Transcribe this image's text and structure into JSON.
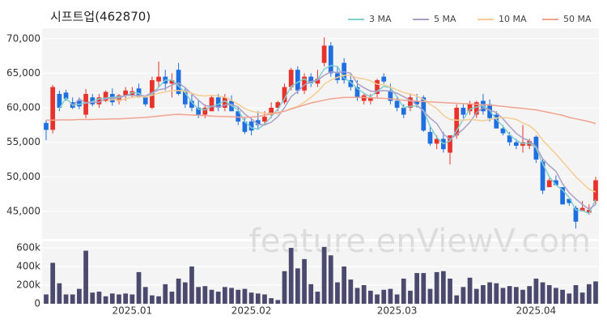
{
  "chart_data": [
    {
      "type": "candlestick",
      "title": "시프트업(462870)",
      "up_color": "#e8322b",
      "down_color": "#1f6fe0",
      "open": [
        57800,
        56800,
        62000,
        62200,
        60800,
        61000,
        59000,
        61500,
        60500,
        61000,
        62000,
        61000,
        61800,
        61800,
        62800,
        61500,
        60000,
        63800,
        64500,
        63500,
        65500,
        62500,
        61000,
        60000,
        59000,
        59500,
        61500,
        60000,
        61000,
        59500,
        58000,
        58000,
        58200,
        58000,
        59000,
        60000,
        60800,
        63000,
        65500,
        62500,
        64500,
        63500,
        66500,
        69000,
        65000,
        66500,
        64000,
        63000,
        61000,
        61000,
        62000,
        64500,
        62500,
        61000,
        60000,
        60000,
        61000,
        61500,
        56500,
        54800,
        55500,
        53500,
        56000,
        60000,
        59500,
        59000,
        61000,
        60500,
        59000,
        57000,
        56000,
        55000,
        54500,
        54500,
        55800,
        52200,
        48500,
        49500,
        48500,
        46800,
        45500,
        45000,
        44800,
        46500
      ],
      "high": [
        58200,
        63300,
        62500,
        62600,
        61500,
        61500,
        62700,
        62000,
        62000,
        62500,
        62800,
        62000,
        63000,
        63000,
        63500,
        61800,
        64500,
        66700,
        65500,
        65000,
        66500,
        63000,
        62200,
        61000,
        60500,
        61800,
        62000,
        62000,
        61800,
        60200,
        58500,
        58500,
        59500,
        59500,
        60800,
        61000,
        63500,
        65800,
        66000,
        65000,
        65000,
        65500,
        70200,
        69500,
        66000,
        67200,
        65000,
        64000,
        62000,
        62000,
        64200,
        65000,
        63500,
        61500,
        60500,
        62000,
        62000,
        61800,
        57500,
        56000,
        56500,
        56000,
        60500,
        60500,
        61000,
        61000,
        62000,
        61200,
        59500,
        57500,
        56500,
        55500,
        57500,
        55500,
        56000,
        52500,
        49800,
        50200,
        48500,
        46800,
        45800,
        46500,
        46000,
        50000
      ],
      "low": [
        55300,
        56300,
        59500,
        61000,
        59800,
        59800,
        58500,
        60200,
        60000,
        60800,
        60300,
        60500,
        61000,
        61500,
        61500,
        60200,
        59800,
        63000,
        62500,
        61500,
        61800,
        60000,
        59500,
        58500,
        58500,
        59500,
        59500,
        59500,
        59500,
        57500,
        56200,
        56000,
        56800,
        57500,
        58500,
        59500,
        60500,
        62500,
        62000,
        62000,
        63000,
        63000,
        66000,
        64500,
        63500,
        63500,
        62500,
        61000,
        60500,
        60500,
        61500,
        63500,
        60500,
        59500,
        58500,
        59500,
        60000,
        56500,
        54500,
        54000,
        53500,
        51800,
        55500,
        58500,
        59000,
        58500,
        59000,
        58000,
        57000,
        56000,
        54500,
        54000,
        53500,
        54000,
        52000,
        47500,
        48500,
        48700,
        46000,
        45800,
        42500,
        45000,
        44500,
        46000
      ],
      "close": [
        56800,
        63000,
        60000,
        61300,
        60000,
        60200,
        62000,
        60500,
        61500,
        62300,
        60800,
        61800,
        62500,
        62400,
        61500,
        60500,
        64000,
        64500,
        63500,
        64000,
        62000,
        60500,
        60000,
        59000,
        60000,
        61500,
        60000,
        61500,
        59500,
        58000,
        56500,
        56700,
        57500,
        58700,
        60000,
        60800,
        63000,
        65500,
        62500,
        64500,
        63500,
        64200,
        69000,
        65000,
        64000,
        64000,
        63000,
        61500,
        61800,
        61500,
        64000,
        63800,
        61000,
        60000,
        59000,
        61500,
        60500,
        56700,
        54800,
        55500,
        54000,
        56000,
        60000,
        59000,
        60500,
        60800,
        59500,
        58500,
        57000,
        56300,
        55000,
        54500,
        55000,
        55200,
        52500,
        48000,
        49500,
        48800,
        46000,
        46200,
        43500,
        45500,
        45200,
        49500
      ],
      "series": [
        {
          "name": "3 MA",
          "color": "#7fcfcf",
          "values": [
            null,
            null,
            59900,
            61400,
            60400,
            60500,
            60700,
            60900,
            61300,
            61400,
            61500,
            61600,
            61700,
            62200,
            62100,
            61500,
            62000,
            63000,
            64000,
            64000,
            63200,
            62200,
            60800,
            59800,
            59700,
            60200,
            60500,
            61000,
            60300,
            59700,
            58000,
            57100,
            56900,
            57600,
            58700,
            59800,
            61300,
            63100,
            63700,
            64200,
            63500,
            64100,
            65600,
            66100,
            66000,
            64300,
            63700,
            62800,
            62100,
            61600,
            62400,
            63100,
            62900,
            61600,
            60000,
            60200,
            60300,
            59600,
            57300,
            55700,
            54800,
            55200,
            56700,
            58300,
            59800,
            60100,
            60300,
            59600,
            58300,
            57300,
            56100,
            55300,
            54800,
            54900,
            54200,
            51900,
            50000,
            48800,
            48100,
            47000,
            45200,
            45100,
            44700,
            46700
          ]
        },
        {
          "name": "5 MA",
          "color": "#ab9fc8",
          "values": [
            null,
            null,
            null,
            null,
            60200,
            61300,
            60700,
            60800,
            60800,
            61300,
            61400,
            61400,
            61800,
            61800,
            61800,
            61700,
            62200,
            62600,
            62800,
            63300,
            63600,
            62900,
            62000,
            61100,
            60300,
            60200,
            60100,
            60400,
            60500,
            60100,
            59100,
            58400,
            57600,
            57500,
            57900,
            58700,
            60000,
            61600,
            62400,
            63300,
            63800,
            64000,
            64700,
            65200,
            65100,
            65200,
            65000,
            63500,
            62900,
            62400,
            62400,
            62500,
            62400,
            62100,
            61600,
            61100,
            60400,
            59500,
            58500,
            57700,
            56200,
            55400,
            56100,
            56900,
            57900,
            59300,
            60000,
            59700,
            59300,
            58400,
            57300,
            56300,
            55600,
            55200,
            54400,
            52600,
            51600,
            50800,
            49000,
            47700,
            46800,
            46000,
            45300,
            46000
          ]
        },
        {
          "name": "10 MA",
          "color": "#f5cc92",
          "values": [
            null,
            null,
            null,
            null,
            null,
            null,
            null,
            null,
            null,
            60900,
            61200,
            61100,
            61300,
            61500,
            61600,
            61600,
            61800,
            62100,
            62300,
            62500,
            62500,
            62400,
            62100,
            61800,
            61700,
            61800,
            61700,
            61500,
            61100,
            60500,
            59900,
            59500,
            59300,
            59200,
            59200,
            59200,
            59500,
            59900,
            60200,
            60800,
            61500,
            62300,
            63400,
            64000,
            64400,
            64700,
            64700,
            64300,
            64200,
            63900,
            63400,
            63300,
            63000,
            62600,
            62200,
            62000,
            61700,
            61200,
            60500,
            59900,
            58900,
            58300,
            58200,
            58200,
            58300,
            58200,
            58100,
            58300,
            58500,
            58600,
            58500,
            58300,
            57800,
            57400,
            56600,
            55300,
            54300,
            53300,
            52200,
            51100,
            50000,
            49100,
            48200,
            47800
          ]
        },
        {
          "name": "50 MA",
          "color": "#f2a28f",
          "values": [
            58200,
            58200,
            58250,
            58250,
            58250,
            58300,
            58300,
            58300,
            58350,
            58350,
            58400,
            58400,
            58450,
            58500,
            58550,
            58600,
            58700,
            58800,
            58900,
            59000,
            59050,
            59000,
            58950,
            58900,
            58850,
            58800,
            58750,
            58750,
            58700,
            58650,
            58600,
            58650,
            58750,
            58900,
            59100,
            59300,
            59500,
            59800,
            60100,
            60400,
            60700,
            60900,
            61100,
            61300,
            61400,
            61500,
            61500,
            61500,
            61500,
            61450,
            61400,
            61350,
            61300,
            61200,
            61100,
            61000,
            60950,
            60900,
            60850,
            60800,
            60750,
            60700,
            60650,
            60600,
            60550,
            60500,
            60450,
            60400,
            60300,
            60200,
            60100,
            60000,
            59900,
            59800,
            59700,
            59500,
            59300,
            59100,
            58900,
            58600,
            58400,
            58200,
            58000,
            57700
          ]
        }
      ],
      "ylim": [
        41000,
        71500
      ],
      "yticks": [
        {
          "value": 45000,
          "label": "45,000"
        },
        {
          "value": 50000,
          "label": "50,000"
        },
        {
          "value": 55000,
          "label": "55,000"
        },
        {
          "value": 60000,
          "label": "60,000"
        },
        {
          "value": 65000,
          "label": "65,000"
        },
        {
          "value": 70000,
          "label": "70,000"
        }
      ],
      "grid": true,
      "legend": "top-right"
    },
    {
      "type": "bar",
      "color": "#4b4a6e",
      "categories": [
        null,
        null,
        null,
        null,
        null,
        null,
        null,
        null,
        null,
        null,
        null,
        null,
        null,
        "2025.01",
        null,
        null,
        null,
        null,
        null,
        null,
        null,
        null,
        null,
        null,
        null,
        null,
        null,
        null,
        null,
        null,
        null,
        "2025.02",
        null,
        null,
        null,
        null,
        null,
        null,
        null,
        null,
        null,
        null,
        null,
        null,
        null,
        null,
        null,
        null,
        null,
        null,
        null,
        null,
        null,
        "2025.03",
        null,
        null,
        null,
        null,
        null,
        null,
        null,
        null,
        null,
        null,
        null,
        null,
        null,
        null,
        null,
        null,
        null,
        null,
        null,
        null,
        "2025.04",
        null,
        null,
        null,
        null,
        null,
        null,
        null,
        null,
        null
      ],
      "values": [
        100000,
        440000,
        220000,
        100000,
        100000,
        160000,
        570000,
        120000,
        130000,
        80000,
        110000,
        100000,
        110000,
        100000,
        340000,
        180000,
        90000,
        80000,
        210000,
        130000,
        270000,
        230000,
        400000,
        180000,
        190000,
        150000,
        130000,
        180000,
        170000,
        150000,
        160000,
        120000,
        110000,
        100000,
        60000,
        40000,
        350000,
        600000,
        380000,
        480000,
        210000,
        130000,
        610000,
        520000,
        230000,
        400000,
        260000,
        170000,
        200000,
        140000,
        100000,
        150000,
        160000,
        100000,
        270000,
        140000,
        330000,
        330000,
        160000,
        340000,
        350000,
        270000,
        90000,
        180000,
        280000,
        160000,
        200000,
        230000,
        220000,
        170000,
        190000,
        180000,
        150000,
        190000,
        270000,
        230000,
        200000,
        170000,
        150000,
        110000,
        200000,
        120000,
        210000,
        240000
      ],
      "ylim": [
        0,
        670000
      ],
      "yticks": [
        0,
        {
          "value": 200000,
          "label": "200k"
        },
        {
          "value": 400000,
          "label": "400k"
        },
        {
          "value": 600000,
          "label": "600k"
        }
      ]
    }
  ],
  "watermark": "feature.enViewV.com"
}
